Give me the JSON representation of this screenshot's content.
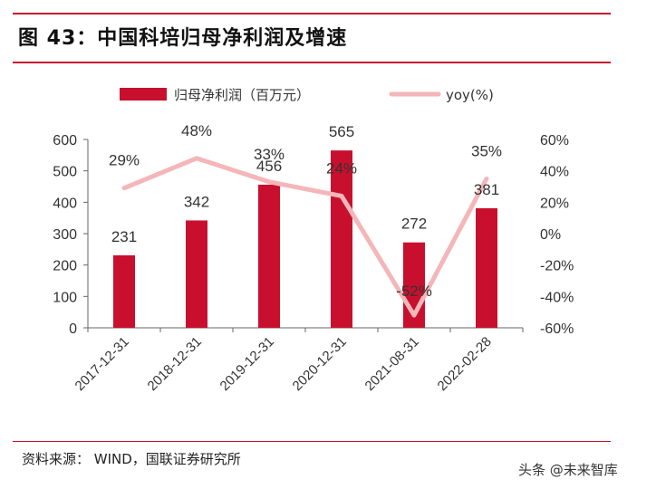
{
  "header": {
    "title": "图 43：中国科培归母净利润及增速"
  },
  "footer": {
    "source": "资料来源：  WIND，国联证券研究所",
    "watermark": "头条 @未来智库"
  },
  "colors": {
    "accent": "#c8102e",
    "bar": "#c8102e",
    "line": "#f4b6b9"
  },
  "chart_data": {
    "type": "bar",
    "categories": [
      "2017-12-31",
      "2018-12-31",
      "2019-12-31",
      "2020-12-31",
      "2021-08-31",
      "2022-02-28"
    ],
    "series": [
      {
        "name": "归母净利润（百万元）",
        "type": "bar",
        "axis": "left",
        "values": [
          231,
          342,
          456,
          565,
          272,
          381
        ],
        "labels": [
          "231",
          "342",
          "456",
          "565",
          "272",
          "381"
        ]
      },
      {
        "name": "yoy(%)",
        "type": "line",
        "axis": "right",
        "values": [
          29,
          48,
          33,
          24,
          -52,
          35
        ],
        "labels": [
          "29%",
          "48%",
          "33%",
          "24%",
          "-52%",
          "35%"
        ]
      }
    ],
    "ylim": [
      0,
      600
    ],
    "yticks": [
      "0",
      "100",
      "200",
      "300",
      "400",
      "500",
      "600"
    ],
    "y2lim": [
      -60,
      60
    ],
    "y2ticks": [
      "-60%",
      "-40%",
      "-20%",
      "0%",
      "20%",
      "40%",
      "60%"
    ],
    "legend": "top",
    "grid": false
  }
}
